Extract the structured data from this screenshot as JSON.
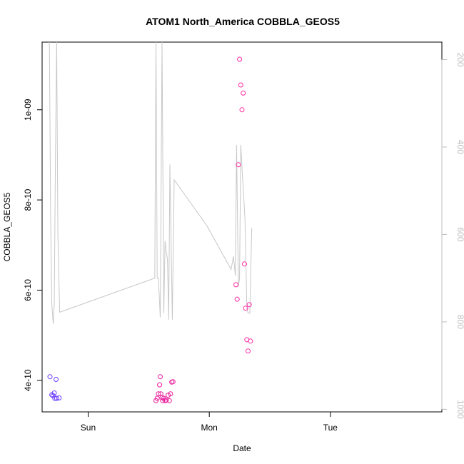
{
  "chart_data": {
    "type": "scatter",
    "title": "ATOM1 North_America COBBLA_GEOS5",
    "xlabel": "Date",
    "ylabel": "COBBLA_GEOS5",
    "x_ticks": [
      "Sun",
      "Mon",
      "Tue"
    ],
    "x_tick_pos": [
      1,
      2,
      3
    ],
    "xlim": [
      0.62,
      3.92
    ],
    "y_ticks": [
      "4e-10",
      "6e-10",
      "8e-10",
      "1e-09"
    ],
    "y_tick_vals": [
      4e-10,
      6e-10,
      8e-10,
      1e-09
    ],
    "ylim": [
      3.3e-10,
      1.15e-09
    ],
    "y2_ticks": [
      "200",
      "400",
      "600",
      "800",
      "1000"
    ],
    "y2_tick_vals": [
      200,
      400,
      600,
      800,
      1000
    ],
    "y2lim": [
      1006,
      160
    ],
    "colors": {
      "line": "#c8c8c8",
      "blue": "#6a3cff",
      "magenta": "#e8199a",
      "pink": "#ff2aa8",
      "axis": "#000000",
      "axis2": "#bdbdbd"
    },
    "series": [
      {
        "type": "line",
        "axis": "right",
        "color": "#c8c8c8",
        "points": [
          [
            0.68,
            150
          ],
          [
            0.69,
            550
          ],
          [
            0.7,
            760
          ],
          [
            0.712,
            805
          ],
          [
            0.72,
            760
          ],
          [
            0.73,
            420
          ],
          [
            0.74,
            140
          ],
          [
            0.75,
            600
          ],
          [
            0.765,
            778
          ],
          [
            1.55,
            700
          ],
          [
            1.56,
            140
          ],
          [
            1.57,
            700
          ],
          [
            1.58,
            700
          ],
          [
            1.595,
            790
          ],
          [
            1.61,
            160
          ],
          [
            1.625,
            780
          ],
          [
            1.635,
            615
          ],
          [
            1.645,
            640
          ],
          [
            1.655,
            656
          ],
          [
            1.665,
            795
          ],
          [
            1.675,
            440
          ],
          [
            1.685,
            620
          ],
          [
            1.695,
            795
          ],
          [
            1.71,
            475
          ],
          [
            1.98,
            580
          ],
          [
            2.18,
            680
          ],
          [
            2.2,
            650
          ],
          [
            2.215,
            695
          ],
          [
            2.225,
            395
          ],
          [
            2.24,
            720
          ],
          [
            2.25,
            700
          ],
          [
            2.26,
            395
          ],
          [
            2.275,
            470
          ],
          [
            2.295,
            565
          ],
          [
            2.31,
            770
          ],
          [
            2.32,
            780
          ],
          [
            2.335,
            780
          ],
          [
            2.35,
            585
          ]
        ]
      },
      {
        "type": "points",
        "axis": "left",
        "color": "#6a3cff",
        "points": [
          [
            0.685,
            4.08e-10
          ],
          [
            0.7,
            3.68e-10
          ],
          [
            0.71,
            3.66e-10
          ],
          [
            0.72,
            3.72e-10
          ],
          [
            0.725,
            3.6e-10
          ],
          [
            0.735,
            4.02e-10
          ],
          [
            0.74,
            3.6e-10
          ],
          [
            0.76,
            3.61e-10
          ]
        ]
      },
      {
        "type": "points",
        "axis": "left",
        "color": "#e8199a",
        "points": [
          [
            1.56,
            3.55e-10
          ],
          [
            1.57,
            3.6e-10
          ],
          [
            1.58,
            3.7e-10
          ],
          [
            1.59,
            3.9e-10
          ],
          [
            1.595,
            4.08e-10
          ],
          [
            1.6,
            3.7e-10
          ],
          [
            1.61,
            3.62e-10
          ],
          [
            1.615,
            3.55e-10
          ],
          [
            1.625,
            3.6e-10
          ],
          [
            1.635,
            3.55e-10
          ],
          [
            1.645,
            3.56e-10
          ],
          [
            1.66,
            3.67e-10
          ],
          [
            1.67,
            3.55e-10
          ],
          [
            1.68,
            3.7e-10
          ],
          [
            1.69,
            3.96e-10
          ],
          [
            1.7,
            3.97e-10
          ]
        ]
      },
      {
        "type": "points",
        "axis": "left",
        "color": "#ff2aa8",
        "points": [
          [
            2.22,
            6.12e-10
          ],
          [
            2.23,
            5.8e-10
          ],
          [
            2.24,
            8.78e-10
          ],
          [
            2.25,
            1.112e-09
          ],
          [
            2.26,
            1.055e-09
          ],
          [
            2.27,
            1e-09
          ],
          [
            2.28,
            1.037e-09
          ],
          [
            2.29,
            6.58e-10
          ],
          [
            2.3,
            5.6e-10
          ],
          [
            2.31,
            4.9e-10
          ],
          [
            2.32,
            4.65e-10
          ],
          [
            2.33,
            5.68e-10
          ],
          [
            2.34,
            4.87e-10
          ]
        ]
      }
    ]
  }
}
